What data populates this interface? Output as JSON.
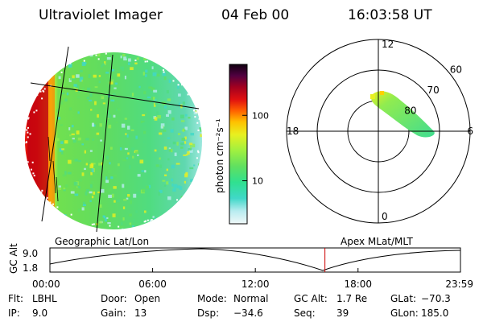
{
  "header": {
    "instrument": "Ultraviolet Imager",
    "date": "04 Feb 00",
    "time": "16:03:58 UT"
  },
  "colorbar": {
    "unit_label": "photon cm⁻²s⁻¹",
    "ticks": [
      {
        "label": "100",
        "value": 100
      },
      {
        "label": "10",
        "value": 10
      }
    ],
    "colors": [
      "#e8f8f8",
      "#b8ecf0",
      "#40d8c8",
      "#30e090",
      "#60e060",
      "#a0f040",
      "#e8f020",
      "#ffc000",
      "#ff6000",
      "#e01010",
      "#a00020",
      "#500040",
      "#100010"
    ]
  },
  "globe_panel": {
    "caption": "Geographic Lat/Lon"
  },
  "polar_plot": {
    "caption": "Apex MLat/MLT",
    "mlt_labels": [
      {
        "label": "12",
        "angle": 0
      },
      {
        "label": "6",
        "angle": 90
      },
      {
        "label": "0",
        "angle": 180
      },
      {
        "label": "18",
        "angle": 270
      }
    ],
    "lat_labels": [
      {
        "label": "60",
        "mlat": 60
      },
      {
        "label": "70",
        "mlat": 70
      },
      {
        "label": "80",
        "mlat": 80
      }
    ]
  },
  "altitude_strip": {
    "ylabel": "GC Alt",
    "y_ticks": [
      "9.0",
      "1.8"
    ],
    "x_ticks": [
      "00:00",
      "06:00",
      "12:00",
      "18:00",
      "23:59"
    ],
    "marker_time": "16:03:58"
  },
  "footer": {
    "rows": [
      [
        {
          "key": "Flt:",
          "value": "LBHL"
        },
        {
          "key": "Door:",
          "value": "Open"
        },
        {
          "key": "Mode:",
          "value": "Normal"
        },
        {
          "key": "GC Alt:",
          "value": "1.7 Re"
        },
        {
          "key": "GLat:",
          "value": "−70.3"
        }
      ],
      [
        {
          "key": "IP:",
          "value": "9.0"
        },
        {
          "key": "Gain:",
          "value": "13"
        },
        {
          "key": "Dsp:",
          "value": "−34.6"
        },
        {
          "key": "Seq:",
          "value": "39"
        },
        {
          "key": "GLon:",
          "value": "185.0"
        }
      ]
    ]
  }
}
